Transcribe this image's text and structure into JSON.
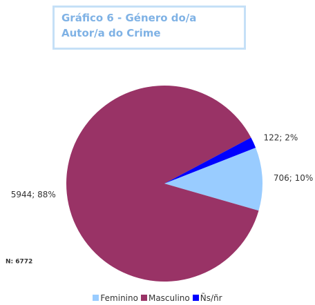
{
  "chart_data": {
    "type": "pie",
    "title": "Gráfico 6 - Género do/a Autor/a do Crime",
    "categories": [
      "Feminino",
      "Masculino",
      "Ñs/ñr"
    ],
    "values": [
      706,
      5944,
      122
    ],
    "value_labels": [
      "706; 10%",
      "5944; 88%",
      "122; 2%"
    ],
    "colors": [
      "#99ccff",
      "#993366",
      "#0000ff"
    ],
    "annotation": "N: 6772",
    "legend": "bottom"
  }
}
